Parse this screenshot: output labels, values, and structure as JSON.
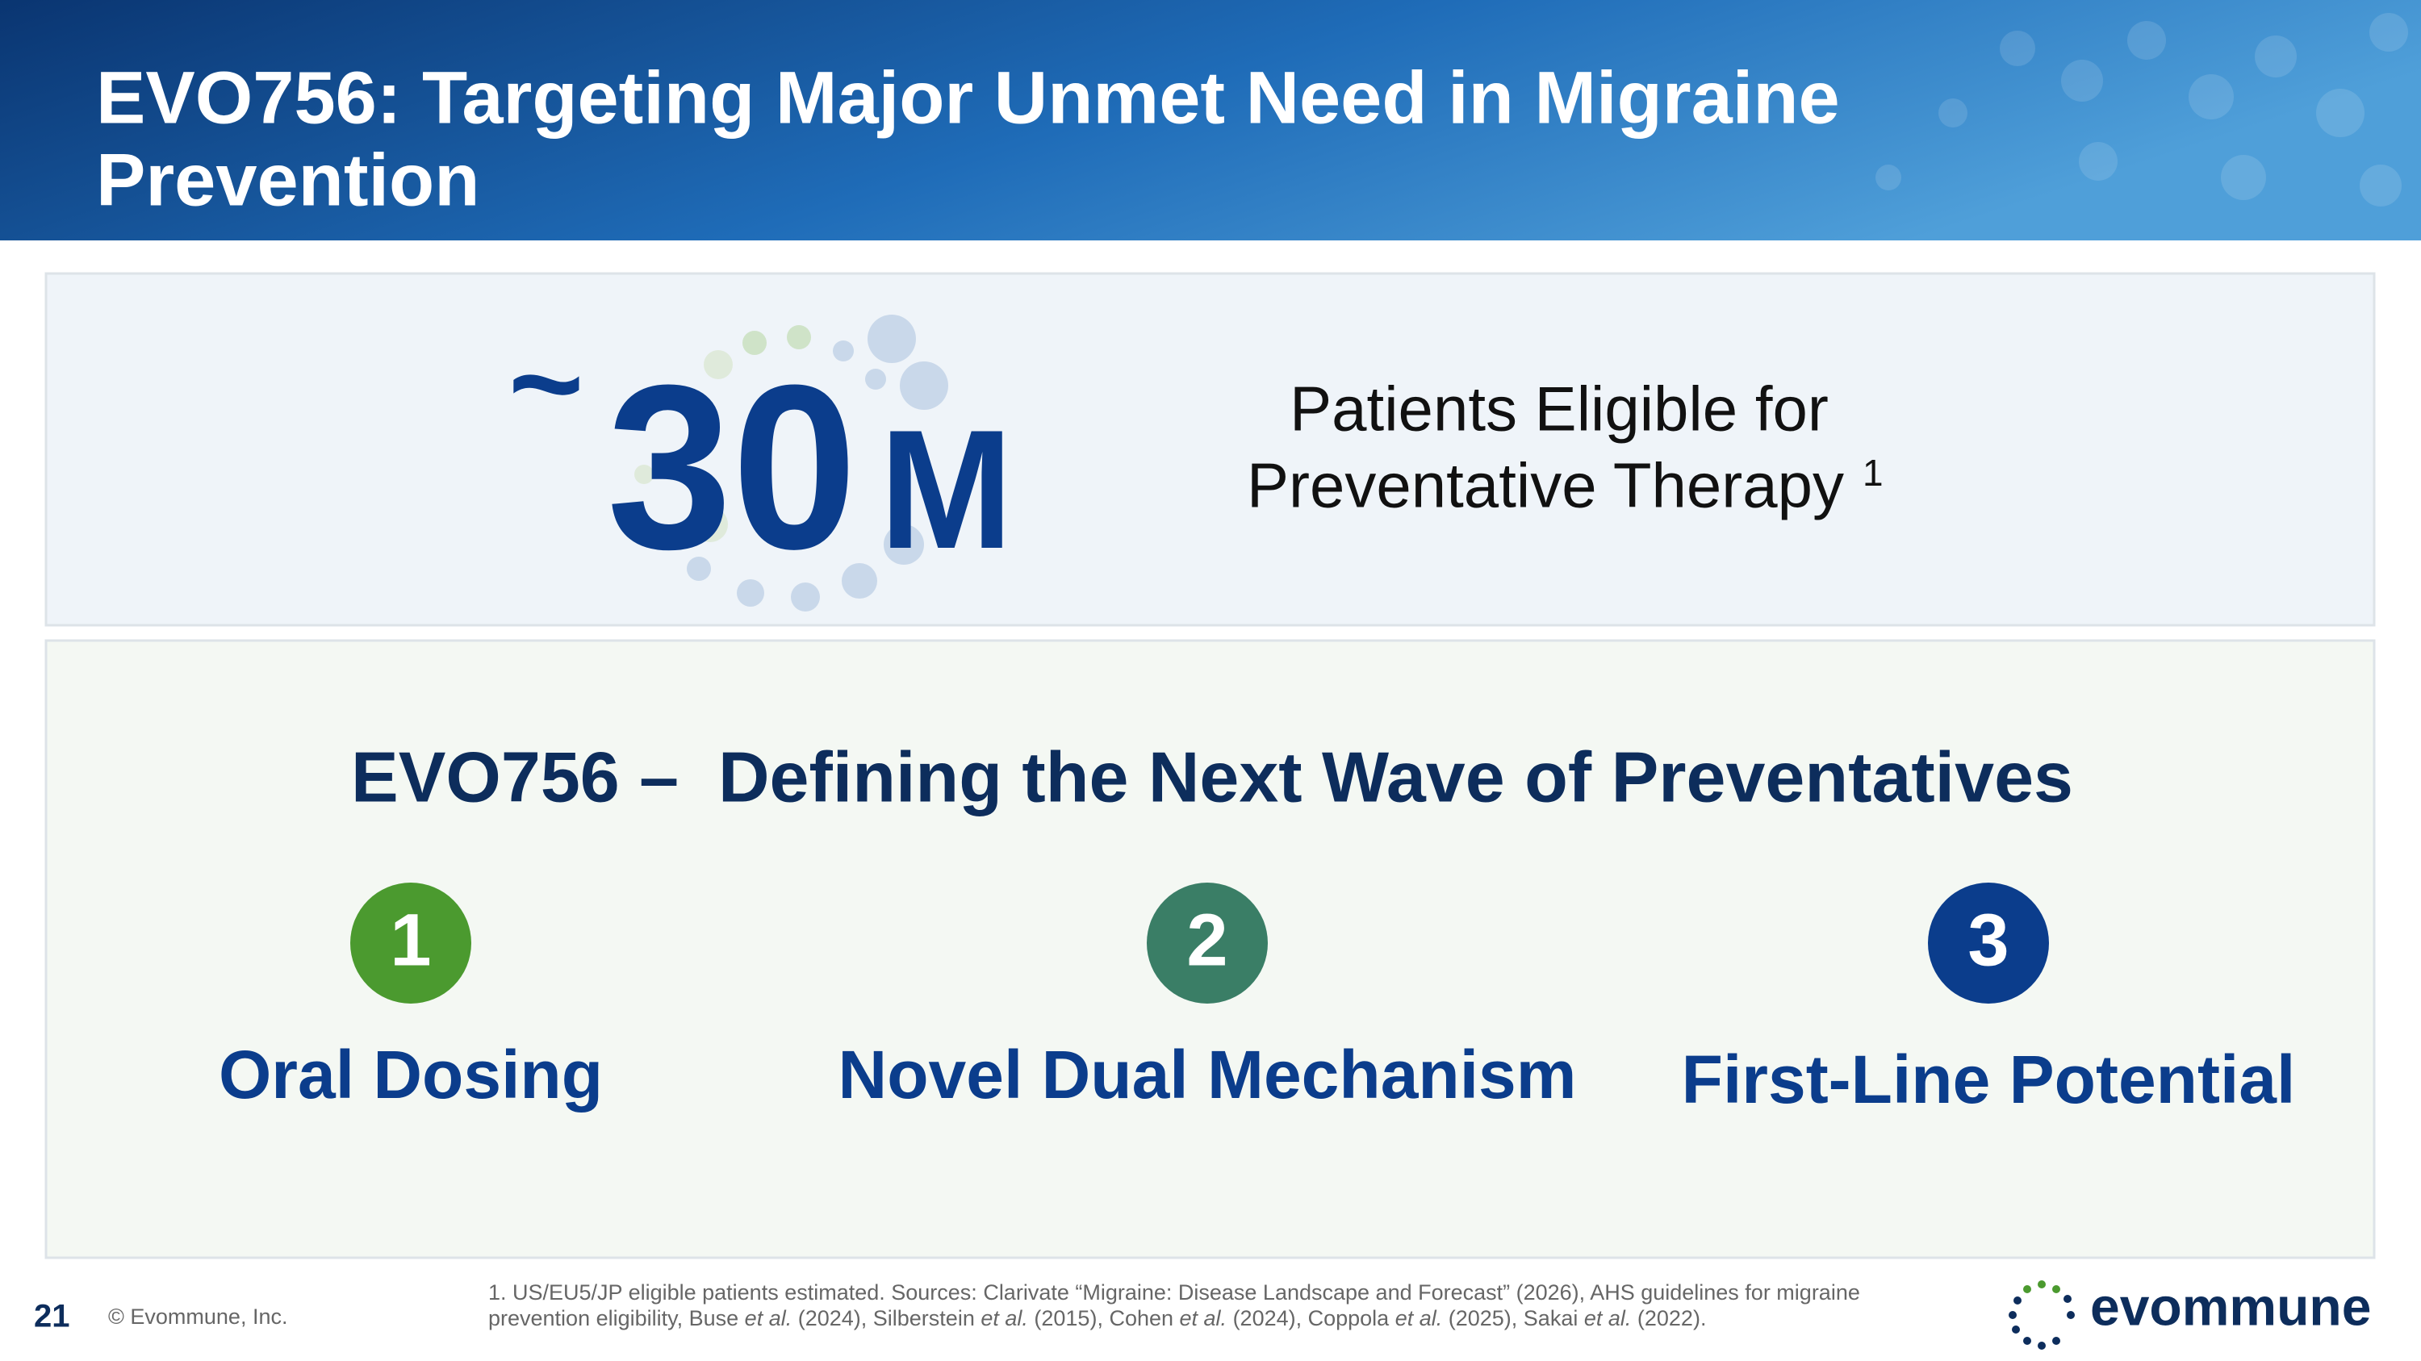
{
  "header": {
    "title_lines": [
      "EVO756: Targeting Major Unmet Need in Migraine",
      "Prevention"
    ]
  },
  "stat": {
    "prefix": "~",
    "number": "30",
    "unit": "M",
    "label_lines": [
      "Patients Eligible for",
      "Preventative Therapy"
    ],
    "footnote_mark": "1"
  },
  "section": {
    "title": "EVO756 –  Defining the Next Wave of Preventatives",
    "pillars": [
      {
        "number": 1,
        "label": "Oral Dosing"
      },
      {
        "number": 2,
        "label": "Novel Dual Mechanism"
      },
      {
        "number": 3,
        "label": "First-Line Potential"
      }
    ]
  },
  "footer": {
    "page_number": 21,
    "copyright": "© Evommune, Inc.",
    "footnote_line1": "1. US/EU5/JP eligible patients estimated. Sources: Clarivate “Migraine: Disease Landscape and Forecast” (2026), AHS guidelines for migraine",
    "footnote_line2": [
      "prevention eligibility, Buse ",
      "et al.",
      " (2024), Silberstein ",
      "et al.",
      " (2015), Cohen ",
      "et al.",
      " (2024), Coppola ",
      "et al.",
      " (2025), Sakai ",
      "et al.",
      " (2022)."
    ],
    "logo": "evommune"
  }
}
